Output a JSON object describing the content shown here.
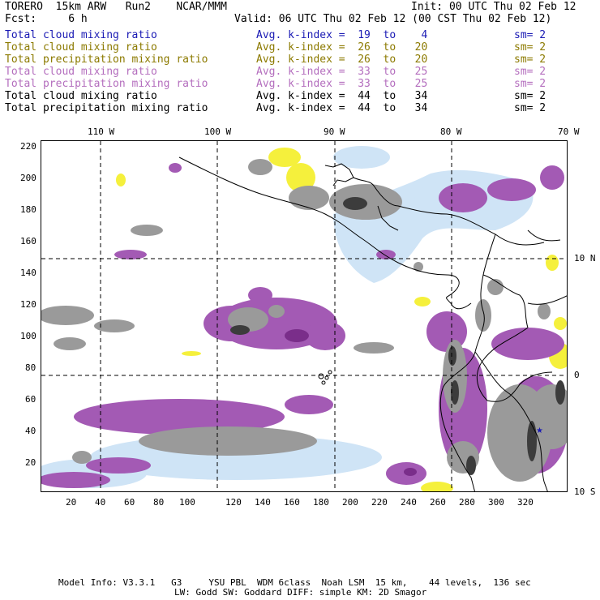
{
  "header": {
    "model_name": "TORERO  15km ARW   Run2    NCAR/MMM",
    "init": "Init: 00 UTC Thu 02 Feb 12",
    "fcst": "Fcst:     6 h",
    "valid": "Valid: 06 UTC Thu 02 Feb 12 (00 CST Thu 02 Feb 12)"
  },
  "fields": [
    {
      "name": "Total cloud mixing ratio",
      "kindex": "Avg. k-index =  19  to    4",
      "sm": "sm= 2",
      "color": "#1a1ab4"
    },
    {
      "name": "Total cloud mixing ratio",
      "kindex": "Avg. k-index =  26  to   20",
      "sm": "sm= 2",
      "color": "#8c7a00"
    },
    {
      "name": "Total precipitation mixing ratio",
      "kindex": "Avg. k-index =  26  to   20",
      "sm": "sm= 2",
      "color": "#8c7a00"
    },
    {
      "name": "Total cloud mixing ratio",
      "kindex": "Avg. k-index =  33  to   25",
      "sm": "sm= 2",
      "color": "#b46ebe"
    },
    {
      "name": "Total precipitation mixing ratio",
      "kindex": "Avg. k-index =  33  to   25",
      "sm": "sm= 2",
      "color": "#b46ebe"
    },
    {
      "name": "Total cloud mixing ratio",
      "kindex": "Avg. k-index =  44  to   34",
      "sm": "sm= 2",
      "color": "#000000"
    },
    {
      "name": "Total precipitation mixing ratio",
      "kindex": "Avg. k-index =  44  to   34",
      "sm": "sm= 2",
      "color": "#000000"
    }
  ],
  "top_lon_labels": [
    "110 W",
    "100 W",
    "90 W",
    "80 W",
    "70 W"
  ],
  "right_lat_labels": [
    "10 N",
    "0",
    "10 S"
  ],
  "y_ticks": [
    "220",
    "200",
    "180",
    "160",
    "140",
    "120",
    "100",
    "80",
    "60",
    "40",
    "20"
  ],
  "x_ticks": [
    "20",
    "40",
    "60",
    "80",
    "100",
    "120",
    "140",
    "160",
    "180",
    "200",
    "220",
    "240",
    "260",
    "280",
    "300",
    "320"
  ],
  "footer": {
    "line1": "Model Info: V3.3.1   G3     YSU PBL  WDM 6class  Noah LSM  15 km,    44 levels,  136 sec",
    "line2": "LW: Godd SW: Goddard DIFF: simple KM: 2D Smagor"
  },
  "colors": {
    "light_blue": "#cfe4f6",
    "yellow": "#f5f03c",
    "purple": "#a35ab4",
    "dark_purple": "#7a2e8a",
    "gray": "#9a9a9a",
    "dark_gray": "#3c3c3c"
  }
}
